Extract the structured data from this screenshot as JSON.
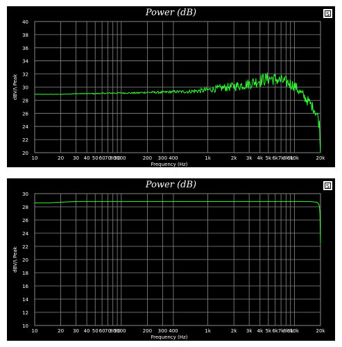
{
  "chart_data": [
    {
      "type": "line",
      "title": "Power (dB)",
      "xlabel": "Frequency (Hz)",
      "ylabel": "dBV/\\ Peak",
      "x_scale": "log",
      "xlim": [
        10,
        20000
      ],
      "ylim": [
        20,
        40
      ],
      "x_tick_labels": [
        "10",
        "20",
        "30",
        "40",
        "50",
        "60",
        "70",
        "80",
        "90",
        "100",
        "200",
        "300",
        "400",
        "1k",
        "2k",
        "3k",
        "4k",
        "5k",
        "6k",
        "7k",
        "8k",
        "9k",
        "10k",
        "20k"
      ],
      "y_tick_labels": [
        "20",
        "22",
        "24",
        "26",
        "28",
        "30",
        "32",
        "34",
        "36",
        "38",
        "40"
      ],
      "grid": true,
      "colors": {
        "line": "#33ff33",
        "grid": "#8a8a8a",
        "background": "#000000",
        "text": "#ffffff"
      },
      "series": [
        {
          "x": [
            10,
            20,
            30,
            50,
            80,
            100,
            150,
            200,
            300,
            400,
            500,
            600,
            700,
            800,
            900,
            1000,
            1200,
            1500,
            2000,
            2500,
            3000,
            3500,
            4000,
            4500,
            5000,
            5500,
            6000,
            6500,
            7000,
            8000,
            9000,
            10000,
            11000,
            12000,
            13000,
            14000,
            15000,
            16000,
            17000,
            18000,
            19000,
            19500,
            20000
          ],
          "y": [
            28.9,
            28.9,
            29.0,
            29.0,
            29.1,
            29.1,
            29.1,
            29.2,
            29.2,
            29.3,
            29.3,
            29.3,
            29.4,
            29.4,
            29.5,
            29.6,
            29.7,
            29.9,
            30.1,
            30.3,
            30.5,
            30.8,
            31.0,
            31.2,
            31.3,
            31.3,
            31.2,
            31.1,
            31.0,
            30.8,
            30.5,
            30.2,
            29.6,
            29.0,
            28.5,
            28.0,
            27.6,
            27.1,
            26.6,
            26.0,
            25.0,
            24.0,
            20.0
          ],
          "noise": [
            0.03,
            0.03,
            0.05,
            0.08,
            0.1,
            0.1,
            0.12,
            0.15,
            0.18,
            0.2,
            0.22,
            0.25,
            0.3,
            0.35,
            0.4,
            0.4,
            0.5,
            0.6,
            0.7,
            0.8,
            0.8,
            0.9,
            1.0,
            1.0,
            1.0,
            1.0,
            1.0,
            0.9,
            0.9,
            0.9,
            0.9,
            0.8,
            0.8,
            0.8,
            0.8,
            0.8,
            0.8,
            0.8,
            0.8,
            0.9,
            1.0,
            1.0,
            0.5
          ]
        }
      ]
    },
    {
      "type": "line",
      "title": "Power (dB)",
      "xlabel": "Frequency (Hz)",
      "ylabel": "dBV/\\ Peak",
      "x_scale": "log",
      "xlim": [
        10,
        20000
      ],
      "ylim": [
        10,
        30
      ],
      "x_tick_labels": [
        "10",
        "20",
        "30",
        "40",
        "50",
        "60",
        "70",
        "80",
        "90",
        "100",
        "200",
        "300",
        "400",
        "1k",
        "2k",
        "3k",
        "4k",
        "5k",
        "6k",
        "7k",
        "8k",
        "9k",
        "10k",
        "20k"
      ],
      "y_tick_labels": [
        "10",
        "12",
        "14",
        "16",
        "18",
        "20",
        "22",
        "24",
        "26",
        "28",
        "30"
      ],
      "grid": true,
      "colors": {
        "line": "#33ff33",
        "grid": "#8a8a8a",
        "background": "#000000",
        "text": "#ffffff"
      },
      "series": [
        {
          "x": [
            10,
            15,
            20,
            30,
            50,
            100,
            200,
            500,
            1000,
            2000,
            5000,
            10000,
            15000,
            18000,
            19000,
            19500,
            19800,
            20000
          ],
          "y": [
            28.6,
            28.6,
            28.7,
            28.8,
            28.8,
            28.8,
            28.8,
            28.8,
            28.8,
            28.8,
            28.8,
            28.8,
            28.8,
            28.7,
            28.5,
            28.0,
            26.5,
            22.5
          ]
        }
      ]
    }
  ]
}
